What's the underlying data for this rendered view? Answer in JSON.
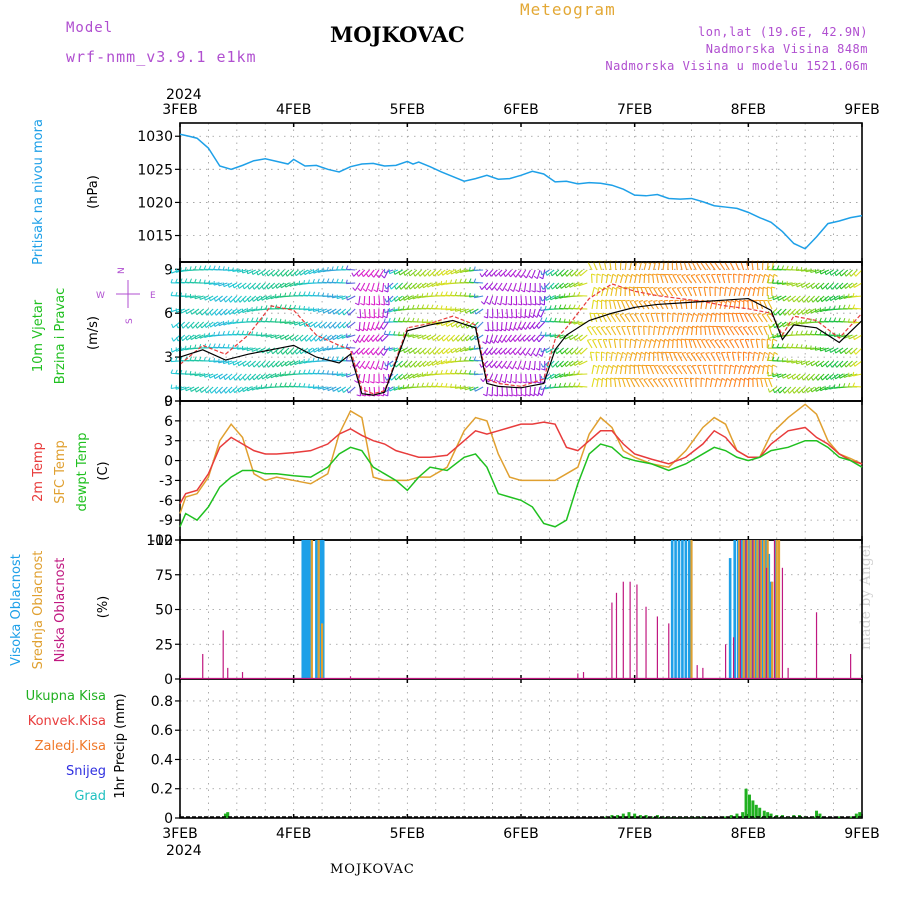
{
  "header": {
    "model_label": "Model",
    "model_name": "wrf-nmm_v3.9.1 e1km",
    "station": "MOJKOVAC",
    "meteogram": "Meteogram",
    "lonlat": "lon,lat (19.6E, 42.9N)",
    "altitude": "Nadmorska Visina 848m",
    "model_altitude": "Nadmorska Visina u modelu 1521.06m"
  },
  "footer": {
    "station": "MOJKOVAC",
    "credit": "made by Angel"
  },
  "time_axis": {
    "year": "2024",
    "labels": [
      "3FEB",
      "4FEB",
      "5FEB",
      "6FEB",
      "7FEB",
      "8FEB",
      "9FEB"
    ]
  },
  "colors": {
    "pressure": "#1ea0e8",
    "temp2m": "#e83c3c",
    "sfc_temp": "#e0a030",
    "dewpt": "#20c020",
    "wind_speed": "#000000",
    "wind_gust": "#e83c3c",
    "clouds_high": "#1ea0e8",
    "clouds_mid": "#e0a030",
    "clouds_low": "#c01880",
    "precip_total": "#20b020",
    "precip_conv": "#e83c3c",
    "precip_frz": "#f07828",
    "precip_snow": "#3030e0",
    "precip_hail": "#20c0c0",
    "purple_label": "#b04fd0"
  },
  "chart_data": [
    {
      "type": "line",
      "panel": "pressure",
      "ylabel_colored": "Pritisak na nivou mora",
      "unit": "(hPa)",
      "ylim": [
        1011,
        1032
      ],
      "yticks": [
        1015,
        1020,
        1025,
        1030
      ],
      "x_days": [
        0,
        0.08,
        0.15,
        0.25,
        0.35,
        0.45,
        0.55,
        0.65,
        0.75,
        0.85,
        0.95,
        1.0,
        1.1,
        1.2,
        1.3,
        1.4,
        1.5,
        1.6,
        1.7,
        1.8,
        1.9,
        2.0,
        2.05,
        2.1,
        2.2,
        2.3,
        2.4,
        2.5,
        2.6,
        2.7,
        2.8,
        2.9,
        3.0,
        3.1,
        3.2,
        3.3,
        3.4,
        3.5,
        3.6,
        3.7,
        3.8,
        3.9,
        4.0,
        4.1,
        4.2,
        4.3,
        4.4,
        4.5,
        4.6,
        4.7,
        4.8,
        4.9,
        5.0,
        5.1,
        5.2,
        5.3,
        5.4,
        5.5,
        5.6,
        5.7,
        5.8,
        5.9,
        6.0
      ],
      "series": [
        {
          "values": [
            1030.3,
            1030.0,
            1029.7,
            1028.2,
            1025.5,
            1025.0,
            1025.6,
            1026.3,
            1026.6,
            1026.2,
            1025.8,
            1026.5,
            1025.5,
            1025.6,
            1025.0,
            1024.6,
            1025.4,
            1025.8,
            1025.9,
            1025.5,
            1025.6,
            1026.2,
            1025.8,
            1026.1,
            1025.4,
            1024.6,
            1023.9,
            1023.2,
            1023.6,
            1024.1,
            1023.5,
            1023.6,
            1024.1,
            1024.7,
            1024.3,
            1023.1,
            1023.2,
            1022.8,
            1023.0,
            1022.9,
            1022.6,
            1022.0,
            1021.1,
            1021.0,
            1021.2,
            1020.6,
            1020.5,
            1020.6,
            1020.1,
            1019.5,
            1019.3,
            1019.1,
            1018.5,
            1017.7,
            1017.0,
            1015.6,
            1013.8,
            1013.0,
            1014.8,
            1016.8,
            1017.2,
            1017.7,
            1018.0
          ]
        }
      ]
    },
    {
      "type": "line",
      "panel": "wind",
      "ylabel_colored": [
        "10m Vjetar",
        "Brzina i Pravac"
      ],
      "unit": "(m/s)",
      "ylim": [
        0,
        9.5
      ],
      "yticks": [
        0,
        3,
        6,
        9
      ],
      "compass": {
        "n": "N",
        "s": "S",
        "e": "E",
        "w": "W"
      },
      "x_days": [
        0,
        0.2,
        0.4,
        0.6,
        0.8,
        1.0,
        1.2,
        1.4,
        1.5,
        1.6,
        1.7,
        1.8,
        2.0,
        2.2,
        2.4,
        2.6,
        2.7,
        2.8,
        3.0,
        3.2,
        3.3,
        3.4,
        3.6,
        3.8,
        4.0,
        4.2,
        4.4,
        4.6,
        4.8,
        5.0,
        5.2,
        5.3,
        5.4,
        5.6,
        5.8,
        6.0
      ],
      "series": [
        {
          "values": [
            3.0,
            3.5,
            2.8,
            3.2,
            3.5,
            3.8,
            3.0,
            2.6,
            3.2,
            0.5,
            0.4,
            0.6,
            4.8,
            5.2,
            5.5,
            5.0,
            1.2,
            1.0,
            0.9,
            1.2,
            3.5,
            4.5,
            5.5,
            6.0,
            6.4,
            6.6,
            6.7,
            6.8,
            6.9,
            7.0,
            6.2,
            4.2,
            5.2,
            5.0,
            4.0,
            5.5
          ]
        },
        {
          "values": [
            2.5,
            3.8,
            3.2,
            4.5,
            6.5,
            6.2,
            4.5,
            3.8,
            3.5,
            0.8,
            0.5,
            0.7,
            5.0,
            5.3,
            5.8,
            5.2,
            1.5,
            1.2,
            1.0,
            1.5,
            4.2,
            5.0,
            7.0,
            8.0,
            7.5,
            7.2,
            7.0,
            6.8,
            6.5,
            6.3,
            6.0,
            4.5,
            5.8,
            5.5,
            4.3,
            6.0
          ]
        }
      ]
    },
    {
      "type": "line",
      "panel": "temperature",
      "ylabel_colored": [
        "2m Temp",
        "SFC Temp",
        "dewpt Temp"
      ],
      "unit": "(C)",
      "ylim": [
        -12,
        9
      ],
      "yticks": [
        -12,
        -9,
        -6,
        -3,
        0,
        3,
        6,
        9
      ],
      "x_days": [
        0,
        0.05,
        0.15,
        0.25,
        0.35,
        0.45,
        0.55,
        0.65,
        0.75,
        0.85,
        1.0,
        1.15,
        1.3,
        1.4,
        1.5,
        1.6,
        1.7,
        1.8,
        1.9,
        2.0,
        2.1,
        2.2,
        2.35,
        2.5,
        2.6,
        2.7,
        2.8,
        2.9,
        3.0,
        3.1,
        3.2,
        3.3,
        3.4,
        3.5,
        3.6,
        3.7,
        3.8,
        3.9,
        4.0,
        4.15,
        4.3,
        4.45,
        4.6,
        4.7,
        4.8,
        4.9,
        5.0,
        5.1,
        5.2,
        5.35,
        5.5,
        5.6,
        5.7,
        5.8,
        5.9,
        6.0
      ],
      "series": [
        {
          "values": [
            -6.5,
            -5,
            -4.5,
            -2,
            2,
            3.5,
            2.5,
            1.5,
            1,
            1,
            1.2,
            1.5,
            2.5,
            4,
            4.8,
            3.8,
            3,
            2.5,
            1.5,
            1,
            0.5,
            0.5,
            0.8,
            3,
            4.5,
            4.0,
            4.5,
            5.0,
            5.5,
            5.5,
            5.8,
            5.5,
            2.0,
            1.5,
            3.0,
            4.5,
            4.5,
            2.5,
            1.0,
            0.2,
            -0.5,
            0.5,
            2.5,
            4.5,
            3.5,
            1.5,
            0.5,
            0.5,
            2.5,
            4.5,
            5.0,
            3.5,
            2.5,
            1.0,
            0,
            -0.5
          ]
        },
        {
          "values": [
            -8,
            -5.5,
            -5,
            -2.5,
            3,
            5.5,
            3.5,
            -2,
            -3,
            -2.5,
            -3,
            -3.5,
            -2,
            4,
            7.5,
            6.5,
            -2.5,
            -3,
            -3,
            -3,
            -2.5,
            -2.5,
            -1,
            4.5,
            6.5,
            6,
            1,
            -2.5,
            -3,
            -3,
            -3,
            -3,
            -2,
            -1,
            4,
            6.5,
            5,
            1.5,
            0.5,
            -0.5,
            -1.0,
            1.5,
            5.0,
            6.5,
            5.5,
            1.5,
            0.5,
            0.5,
            4.0,
            6.5,
            8.5,
            7.0,
            3.0,
            1.0,
            0.3,
            -0.5
          ]
        },
        {
          "values": [
            -10,
            -8,
            -9,
            -7,
            -4,
            -2.5,
            -1.5,
            -1.5,
            -2,
            -2,
            -2.3,
            -2.5,
            -1,
            1,
            2,
            1.5,
            -1,
            -2,
            -3,
            -4.5,
            -2.5,
            -1.0,
            -1.5,
            0.5,
            1,
            -1,
            -5,
            -5.5,
            -6,
            -7,
            -9.5,
            -10,
            -9,
            -3.5,
            1,
            2.5,
            2,
            0.5,
            0,
            -0.5,
            -1.5,
            -0.5,
            1,
            2,
            1.5,
            0.5,
            0,
            0.5,
            1.5,
            2,
            3,
            3,
            2,
            0.5,
            0,
            -1
          ]
        }
      ]
    },
    {
      "type": "bar",
      "panel": "clouds",
      "ylabel_colored": [
        "Visoka Oblacnost",
        "Srednja Oblacnost",
        "Niska Oblacnost"
      ],
      "unit": "(%)",
      "ylim": [
        0,
        100
      ],
      "yticks": [
        0,
        25,
        50,
        75,
        100
      ],
      "series": [
        {
          "name": "high",
          "bars": [
            [
              1.08,
              100
            ],
            [
              1.1,
              100
            ],
            [
              1.12,
              100
            ],
            [
              1.14,
              100
            ],
            [
              1.2,
              100
            ],
            [
              1.24,
              100
            ],
            [
              1.26,
              100
            ],
            [
              4.33,
              100
            ],
            [
              4.36,
              100
            ],
            [
              4.39,
              100
            ],
            [
              4.42,
              100
            ],
            [
              4.45,
              100
            ],
            [
              4.48,
              100
            ],
            [
              4.84,
              87
            ],
            [
              4.88,
              100
            ],
            [
              4.91,
              100
            ],
            [
              4.94,
              100
            ],
            [
              4.97,
              100
            ],
            [
              5.0,
              100
            ],
            [
              5.03,
              100
            ],
            [
              5.06,
              100
            ],
            [
              5.09,
              100
            ],
            [
              5.12,
              100
            ],
            [
              5.15,
              100
            ],
            [
              5.18,
              90
            ],
            [
              5.2,
              70
            ],
            [
              5.24,
              100
            ]
          ]
        },
        {
          "name": "mid",
          "bars": [
            [
              1.16,
              100
            ],
            [
              1.22,
              100
            ],
            [
              1.25,
              40
            ],
            [
              4.5,
              100
            ],
            [
              4.92,
              100
            ],
            [
              4.96,
              100
            ],
            [
              4.99,
              100
            ],
            [
              5.02,
              100
            ],
            [
              5.05,
              100
            ],
            [
              5.08,
              100
            ],
            [
              5.11,
              100
            ],
            [
              5.14,
              100
            ],
            [
              5.17,
              100
            ],
            [
              5.21,
              70
            ],
            [
              5.25,
              100
            ],
            [
              5.27,
              100
            ]
          ]
        },
        {
          "name": "low",
          "bars": [
            [
              0.2,
              18
            ],
            [
              0.38,
              35
            ],
            [
              0.42,
              8
            ],
            [
              0.55,
              5
            ],
            [
              1.5,
              2
            ],
            [
              2.0,
              1
            ],
            [
              3.5,
              4
            ],
            [
              3.55,
              5
            ],
            [
              3.8,
              55
            ],
            [
              3.84,
              62
            ],
            [
              3.9,
              70
            ],
            [
              3.96,
              70
            ],
            [
              4.02,
              68
            ],
            [
              4.1,
              52
            ],
            [
              4.2,
              45
            ],
            [
              4.3,
              40
            ],
            [
              4.55,
              10
            ],
            [
              4.6,
              8
            ],
            [
              4.8,
              25
            ],
            [
              4.87,
              30
            ],
            [
              4.93,
              100
            ],
            [
              4.98,
              100
            ],
            [
              5.04,
              100
            ],
            [
              5.1,
              100
            ],
            [
              5.16,
              80
            ],
            [
              5.23,
              100
            ],
            [
              5.3,
              80
            ],
            [
              5.35,
              8
            ],
            [
              5.6,
              48
            ],
            [
              5.9,
              18
            ]
          ]
        }
      ]
    },
    {
      "type": "bar",
      "panel": "precip",
      "ylabel": "1hr Precip (mm)",
      "legend_colored": [
        "Ukupna Kisa",
        "Konvek.Kisa",
        "Zaledj.Kisa",
        "Snijeg",
        "Grad"
      ],
      "ylim": [
        0,
        0.95
      ],
      "yticks": [
        0,
        0.2,
        0.4,
        0.6,
        0.8
      ],
      "series": [
        {
          "name": "total",
          "bars": [
            [
              0.4,
              0.03
            ],
            [
              0.42,
              0.04
            ],
            [
              3.75,
              0.01
            ],
            [
              3.8,
              0.02
            ],
            [
              3.85,
              0.02
            ],
            [
              3.9,
              0.03
            ],
            [
              3.95,
              0.04
            ],
            [
              4.0,
              0.03
            ],
            [
              4.05,
              0.02
            ],
            [
              4.1,
              0.02
            ],
            [
              4.15,
              0.01
            ],
            [
              4.2,
              0.02
            ],
            [
              4.25,
              0.01
            ],
            [
              4.3,
              0.01
            ],
            [
              4.35,
              0.01
            ],
            [
              4.4,
              0.01
            ],
            [
              4.45,
              0.01
            ],
            [
              4.5,
              0.01
            ],
            [
              4.55,
              0.01
            ],
            [
              4.6,
              0.01
            ],
            [
              4.8,
              0.01
            ],
            [
              4.85,
              0.02
            ],
            [
              4.9,
              0.03
            ],
            [
              4.95,
              0.04
            ],
            [
              4.98,
              0.2
            ],
            [
              5.01,
              0.16
            ],
            [
              5.04,
              0.12
            ],
            [
              5.07,
              0.09
            ],
            [
              5.1,
              0.07
            ],
            [
              5.14,
              0.05
            ],
            [
              5.17,
              0.04
            ],
            [
              5.2,
              0.03
            ],
            [
              5.25,
              0.02
            ],
            [
              5.3,
              0.02
            ],
            [
              5.35,
              0.01
            ],
            [
              5.4,
              0.02
            ],
            [
              5.45,
              0.02
            ],
            [
              5.5,
              0.01
            ],
            [
              5.57,
              0.01
            ],
            [
              5.6,
              0.05
            ],
            [
              5.63,
              0.03
            ],
            [
              5.8,
              0.01
            ],
            [
              5.9,
              0.01
            ],
            [
              5.95,
              0.03
            ],
            [
              5.98,
              0.04
            ]
          ]
        }
      ]
    }
  ]
}
